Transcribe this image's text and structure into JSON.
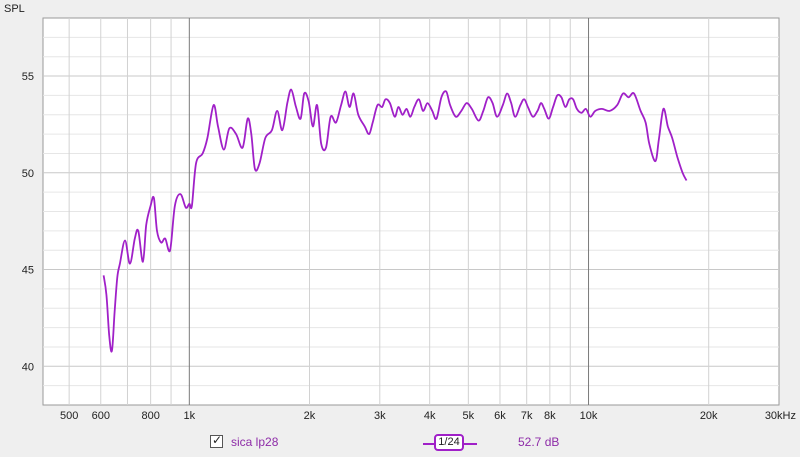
{
  "chart_data": {
    "type": "line",
    "ylabel": "SPL",
    "x_scale": "log",
    "xlim": [
      430,
      30000
    ],
    "ylim": [
      38,
      58
    ],
    "y_ticks": [
      40,
      45,
      50,
      55
    ],
    "x_ticks": [
      {
        "value": 500,
        "label": "500"
      },
      {
        "value": 600,
        "label": "600"
      },
      {
        "value": 800,
        "label": "800"
      },
      {
        "value": 1000,
        "label": "1k"
      },
      {
        "value": 2000,
        "label": "2k"
      },
      {
        "value": 3000,
        "label": "3k"
      },
      {
        "value": 4000,
        "label": "4k"
      },
      {
        "value": 5000,
        "label": "5k"
      },
      {
        "value": 6000,
        "label": "6k"
      },
      {
        "value": 7000,
        "label": "7k"
      },
      {
        "value": 8000,
        "label": "8k"
      },
      {
        "value": 10000,
        "label": "10k"
      },
      {
        "value": 20000,
        "label": "20k"
      },
      {
        "value": 30000,
        "label": "30kHz"
      }
    ],
    "minor_x": [
      400,
      700,
      900,
      1000,
      2000,
      3000,
      4000,
      5000,
      6000,
      7000,
      8000,
      9000,
      10000,
      20000
    ],
    "major_x": [
      1000,
      10000
    ],
    "grid": true,
    "series": [
      {
        "name": "sica lp28",
        "color": "#a020c8",
        "points": [
          [
            610,
            44.7
          ],
          [
            620,
            43.7
          ],
          [
            630,
            41.6
          ],
          [
            640,
            40.8
          ],
          [
            650,
            42.8
          ],
          [
            660,
            44.6
          ],
          [
            670,
            45.3
          ],
          [
            690,
            46.5
          ],
          [
            710,
            45.3
          ],
          [
            730,
            46.6
          ],
          [
            745,
            47.0
          ],
          [
            765,
            45.4
          ],
          [
            780,
            47.3
          ],
          [
            800,
            48.3
          ],
          [
            815,
            48.7
          ],
          [
            830,
            47.0
          ],
          [
            850,
            46.4
          ],
          [
            870,
            46.6
          ],
          [
            895,
            46.0
          ],
          [
            920,
            48.3
          ],
          [
            950,
            48.9
          ],
          [
            980,
            48.2
          ],
          [
            1000,
            48.4
          ],
          [
            1015,
            48.3
          ],
          [
            1040,
            50.5
          ],
          [
            1080,
            51.0
          ],
          [
            1110,
            51.8
          ],
          [
            1150,
            53.5
          ],
          [
            1180,
            52.4
          ],
          [
            1220,
            51.2
          ],
          [
            1260,
            52.3
          ],
          [
            1310,
            52.0
          ],
          [
            1360,
            51.3
          ],
          [
            1400,
            52.8
          ],
          [
            1430,
            52.0
          ],
          [
            1460,
            50.2
          ],
          [
            1500,
            50.5
          ],
          [
            1550,
            51.8
          ],
          [
            1610,
            52.2
          ],
          [
            1660,
            53.2
          ],
          [
            1710,
            52.2
          ],
          [
            1760,
            53.6
          ],
          [
            1800,
            54.3
          ],
          [
            1850,
            53.4
          ],
          [
            1900,
            52.8
          ],
          [
            1940,
            54.1
          ],
          [
            1990,
            53.7
          ],
          [
            2040,
            52.4
          ],
          [
            2090,
            53.5
          ],
          [
            2140,
            51.5
          ],
          [
            2200,
            51.3
          ],
          [
            2260,
            52.9
          ],
          [
            2330,
            52.6
          ],
          [
            2400,
            53.5
          ],
          [
            2460,
            54.2
          ],
          [
            2520,
            53.4
          ],
          [
            2580,
            54.1
          ],
          [
            2650,
            53.0
          ],
          [
            2750,
            52.4
          ],
          [
            2820,
            52.0
          ],
          [
            2880,
            52.6
          ],
          [
            2960,
            53.5
          ],
          [
            3040,
            53.4
          ],
          [
            3100,
            53.8
          ],
          [
            3180,
            53.6
          ],
          [
            3270,
            52.9
          ],
          [
            3340,
            53.4
          ],
          [
            3420,
            53.0
          ],
          [
            3500,
            53.3
          ],
          [
            3580,
            52.9
          ],
          [
            3660,
            53.4
          ],
          [
            3760,
            53.8
          ],
          [
            3850,
            53.2
          ],
          [
            3950,
            53.6
          ],
          [
            4060,
            53.2
          ],
          [
            4160,
            52.8
          ],
          [
            4280,
            53.9
          ],
          [
            4400,
            54.2
          ],
          [
            4500,
            53.5
          ],
          [
            4650,
            52.9
          ],
          [
            4800,
            53.2
          ],
          [
            4950,
            53.6
          ],
          [
            5100,
            53.3
          ],
          [
            5300,
            52.7
          ],
          [
            5450,
            53.2
          ],
          [
            5600,
            53.9
          ],
          [
            5750,
            53.6
          ],
          [
            5900,
            52.9
          ],
          [
            6100,
            53.5
          ],
          [
            6250,
            54.1
          ],
          [
            6400,
            53.6
          ],
          [
            6550,
            52.9
          ],
          [
            6750,
            53.5
          ],
          [
            6900,
            53.8
          ],
          [
            7050,
            53.4
          ],
          [
            7250,
            52.9
          ],
          [
            7450,
            53.2
          ],
          [
            7600,
            53.6
          ],
          [
            7750,
            53.3
          ],
          [
            7950,
            52.8
          ],
          [
            8150,
            53.4
          ],
          [
            8350,
            54.0
          ],
          [
            8550,
            53.9
          ],
          [
            8750,
            53.4
          ],
          [
            8950,
            53.8
          ],
          [
            9150,
            53.8
          ],
          [
            9350,
            53.3
          ],
          [
            9600,
            53.1
          ],
          [
            9850,
            53.3
          ],
          [
            10100,
            52.9
          ],
          [
            10400,
            53.2
          ],
          [
            10800,
            53.3
          ],
          [
            11300,
            53.2
          ],
          [
            11800,
            53.5
          ],
          [
            12200,
            54.1
          ],
          [
            12600,
            53.9
          ],
          [
            13000,
            54.1
          ],
          [
            13500,
            53.2
          ],
          [
            13900,
            52.6
          ],
          [
            14200,
            51.5
          ],
          [
            14700,
            50.6
          ],
          [
            15000,
            51.7
          ],
          [
            15400,
            53.3
          ],
          [
            15800,
            52.4
          ],
          [
            16200,
            51.8
          ],
          [
            16700,
            50.8
          ],
          [
            17200,
            50.0
          ],
          [
            17600,
            49.6
          ]
        ]
      }
    ]
  },
  "legend": {
    "checkbox_mark": "✓",
    "series_name": "sica lp28",
    "smoothing_label": "1/24",
    "value_readout": "52.7 dB"
  }
}
